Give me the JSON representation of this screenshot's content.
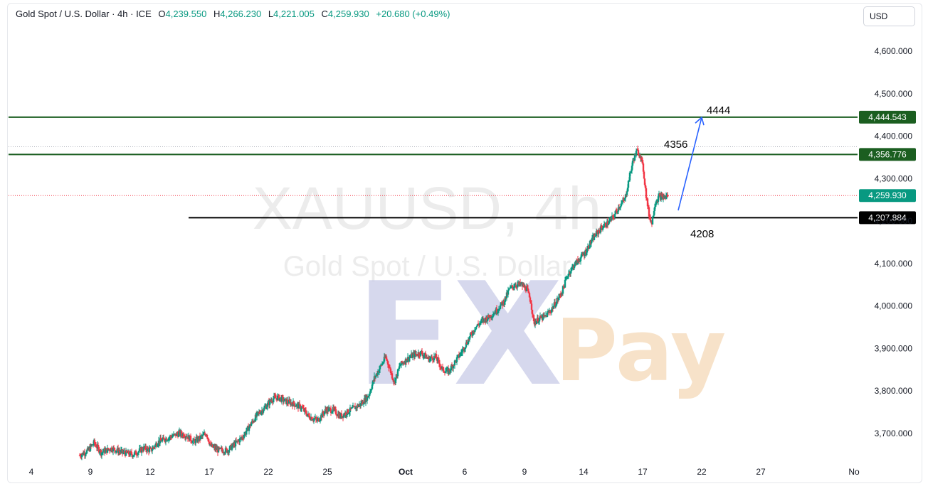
{
  "header": {
    "symbol_title": "Gold Spot / U.S. Dollar · 4h · ICE",
    "open_label": "O",
    "open": "4,239.550",
    "high_label": "H",
    "high": "4,266.230",
    "low_label": "L",
    "low": "4,221.005",
    "close_label": "C",
    "close": "4,259.930",
    "change": "+20.680 (+0.49%)"
  },
  "currency_button": "USD",
  "watermark": {
    "symbol": "XAUUSD, 4h",
    "description": "Gold Spot / U.S. Dollar",
    "logo_text_1": "FX",
    "logo_text_2": "Pay"
  },
  "annotations": {
    "target": "4444",
    "resistance": "4356",
    "support": "4208"
  },
  "colors": {
    "up": "#089981",
    "down": "#f23645",
    "level_line": "#1b5e20",
    "support_line": "#000000",
    "arrow": "#2962ff"
  },
  "chart_data": {
    "type": "candlestick",
    "instrument": "XAUUSD",
    "timeframe": "4h",
    "y_axis": {
      "ticks": [
        3700,
        3800,
        3900,
        4000,
        4100,
        4200,
        4300,
        4400,
        4500,
        4600
      ],
      "tick_labels": [
        "3,700.000",
        "3,800.000",
        "3,900.000",
        "4,000.000",
        "4,100.000",
        "4,200.000",
        "4,300.000",
        "4,400.000",
        "4,500.000",
        "4,600.000"
      ],
      "ylim": [
        3630,
        4680
      ]
    },
    "x_axis": {
      "tick_labels": [
        "4",
        "9",
        "12",
        "17",
        "22",
        "25",
        "Oct",
        "6",
        "9",
        "14",
        "17",
        "22",
        "27",
        "No"
      ]
    },
    "levels": [
      {
        "value": 4444.543,
        "label": "4,444.543",
        "style": "solid",
        "color": "#1b5e20"
      },
      {
        "value": 4356.776,
        "label": "4,356.776",
        "style": "solid",
        "color": "#1b5e20"
      },
      {
        "value": 4207.884,
        "label": "4,207.884",
        "style": "solid",
        "color": "#000000"
      },
      {
        "value": 4259.93,
        "label": "4,259.930",
        "style": "dotted",
        "color": "#f23645",
        "kind": "last-price"
      }
    ],
    "price_path": [
      [
        0,
        3648
      ],
      [
        12,
        3660
      ],
      [
        20,
        3678
      ],
      [
        30,
        3655
      ],
      [
        45,
        3665
      ],
      [
        60,
        3655
      ],
      [
        75,
        3650
      ],
      [
        90,
        3665
      ],
      [
        100,
        3660
      ],
      [
        110,
        3680
      ],
      [
        125,
        3690
      ],
      [
        140,
        3700
      ],
      [
        150,
        3695
      ],
      [
        160,
        3680
      ],
      [
        170,
        3690
      ],
      [
        178,
        3700
      ],
      [
        184,
        3670
      ],
      [
        195,
        3660
      ],
      [
        208,
        3660
      ],
      [
        218,
        3675
      ],
      [
        228,
        3690
      ],
      [
        240,
        3720
      ],
      [
        250,
        3745
      ],
      [
        260,
        3760
      ],
      [
        270,
        3780
      ],
      [
        278,
        3785
      ],
      [
        290,
        3775
      ],
      [
        300,
        3770
      ],
      [
        312,
        3760
      ],
      [
        322,
        3740
      ],
      [
        334,
        3730
      ],
      [
        346,
        3755
      ],
      [
        356,
        3755
      ],
      [
        366,
        3740
      ],
      [
        376,
        3750
      ],
      [
        386,
        3760
      ],
      [
        396,
        3770
      ],
      [
        406,
        3790
      ],
      [
        414,
        3830
      ],
      [
        422,
        3855
      ],
      [
        430,
        3880
      ],
      [
        436,
        3850
      ],
      [
        442,
        3820
      ],
      [
        450,
        3860
      ],
      [
        460,
        3875
      ],
      [
        470,
        3885
      ],
      [
        480,
        3890
      ],
      [
        490,
        3875
      ],
      [
        500,
        3880
      ],
      [
        510,
        3850
      ],
      [
        518,
        3845
      ],
      [
        528,
        3870
      ],
      [
        536,
        3890
      ],
      [
        546,
        3920
      ],
      [
        556,
        3950
      ],
      [
        566,
        3965
      ],
      [
        576,
        3975
      ],
      [
        586,
        3990
      ],
      [
        596,
        4010
      ],
      [
        604,
        4040
      ],
      [
        612,
        4050
      ],
      [
        620,
        4050
      ],
      [
        628,
        4040
      ],
      [
        634,
        4010
      ],
      [
        638,
        3960
      ],
      [
        646,
        3970
      ],
      [
        654,
        3975
      ],
      [
        662,
        3990
      ],
      [
        670,
        4010
      ],
      [
        678,
        4035
      ],
      [
        686,
        4075
      ],
      [
        694,
        4095
      ],
      [
        702,
        4110
      ],
      [
        710,
        4125
      ],
      [
        718,
        4150
      ],
      [
        726,
        4170
      ],
      [
        734,
        4185
      ],
      [
        742,
        4195
      ],
      [
        750,
        4210
      ],
      [
        758,
        4235
      ],
      [
        766,
        4250
      ],
      [
        772,
        4300
      ],
      [
        778,
        4345
      ],
      [
        783,
        4365
      ],
      [
        788,
        4355
      ],
      [
        792,
        4320
      ],
      [
        796,
        4260
      ],
      [
        800,
        4215
      ],
      [
        804,
        4195
      ],
      [
        808,
        4240
      ],
      [
        814,
        4258
      ],
      [
        820,
        4255
      ],
      [
        826,
        4260
      ]
    ],
    "projection_arrow": {
      "from": 4225,
      "to": 4444
    }
  }
}
